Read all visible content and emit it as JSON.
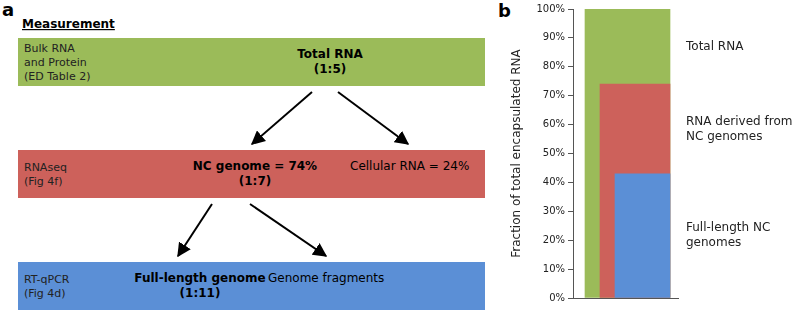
{
  "panel_labels": [
    "a",
    "b"
  ],
  "diagram": {
    "header": "Measurement",
    "rows": [
      {
        "method": [
          "Bulk RNA",
          "and Protein",
          "(ED Table 2)"
        ],
        "color": "#9bbb59",
        "items": [
          {
            "text": "Total RNA",
            "ratio": "(1:5)"
          }
        ]
      },
      {
        "method": [
          "RNAseq",
          "(Fig 4f)"
        ],
        "color": "#cd615b",
        "items": [
          {
            "text": "NC genome = 74%",
            "ratio": "(1:7)"
          },
          {
            "text": "Cellular RNA = 24%"
          }
        ]
      },
      {
        "method": [
          "RT-qPCR",
          "(Fig 4d)"
        ],
        "color": "#5b8fd6",
        "items": [
          {
            "text": "Full-length genome",
            "ratio": "(1:11)"
          },
          {
            "text": "Genome fragments"
          }
        ]
      }
    ]
  },
  "chart_data": {
    "type": "bar",
    "ylabel": "Fraction of total encapsulated RNA",
    "series": [
      {
        "name": "Total RNA",
        "color": "#9bbb59",
        "values": [
          100
        ]
      },
      {
        "name": "RNA derived from NC genomes",
        "color": "#cd615b",
        "values": [
          74
        ]
      },
      {
        "name": "Full-length NC genomes",
        "color": "#5b8fd6",
        "values": [
          43
        ]
      }
    ],
    "ylim": [
      0,
      100
    ],
    "yticks": [
      {
        "value": 0,
        "label": "0%"
      },
      {
        "value": 10,
        "label": "10%"
      },
      {
        "value": 20,
        "label": "20%"
      },
      {
        "value": 30,
        "label": "30%"
      },
      {
        "value": 40,
        "label": "40%"
      },
      {
        "value": 50,
        "label": "50%"
      },
      {
        "value": 60,
        "label": "60%"
      },
      {
        "value": 70,
        "label": "70%"
      },
      {
        "value": 80,
        "label": "80%"
      },
      {
        "value": 90,
        "label": "90%"
      },
      {
        "value": 100,
        "label": "100%"
      }
    ],
    "grid": false
  }
}
